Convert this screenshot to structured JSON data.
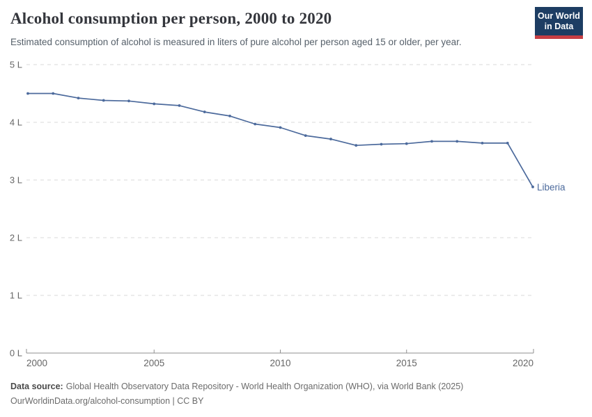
{
  "header": {
    "title": "Alcohol consumption per person, 2000 to 2020",
    "subtitle": "Estimated consumption of alcohol is measured in liters of pure alcohol per person aged 15 or older, per year.",
    "logo": {
      "line1": "Our World",
      "line2": "in Data"
    }
  },
  "chart_data": {
    "type": "line",
    "title": "Alcohol consumption per person, 2000 to 2020",
    "xlabel": "",
    "ylabel": "liters of pure alcohol per person aged 15+",
    "xlim": [
      2000,
      2020
    ],
    "ylim": [
      0,
      5
    ],
    "grid": "horizontal-dashed",
    "legend_position": "end-of-line-label",
    "x": [
      2000,
      2001,
      2002,
      2003,
      2004,
      2005,
      2006,
      2007,
      2008,
      2009,
      2010,
      2011,
      2012,
      2013,
      2014,
      2015,
      2016,
      2017,
      2018,
      2019,
      2020
    ],
    "series": [
      {
        "name": "Liberia",
        "values": [
          4.5,
          4.5,
          4.42,
          4.38,
          4.37,
          4.32,
          4.29,
          4.18,
          4.11,
          3.97,
          3.91,
          3.77,
          3.71,
          3.6,
          3.62,
          3.63,
          3.67,
          3.67,
          3.64,
          3.64,
          2.88
        ]
      }
    ],
    "x_ticks": [
      2000,
      2005,
      2010,
      2015,
      2020
    ],
    "y_ticks": [
      {
        "value": 0,
        "label": "0 L"
      },
      {
        "value": 1,
        "label": "1 L"
      },
      {
        "value": 2,
        "label": "2 L"
      },
      {
        "value": 3,
        "label": "3 L"
      },
      {
        "value": 4,
        "label": "4 L"
      },
      {
        "value": 5,
        "label": "5 L"
      }
    ]
  },
  "footer": {
    "datasource_label": "Data source:",
    "datasource_text": "Global Health Observatory Data Repository - World Health Organization (WHO), via World Bank (2025)",
    "license_line": "OurWorldinData.org/alcohol-consumption | CC BY"
  },
  "colors": {
    "series_line": "#4c6a9c",
    "end_label": "#4c6a9c",
    "gridline": "#d9d9d9",
    "axis": "#8f8f8f",
    "tick_text": "#666666",
    "logo_navy": "#1d3d63",
    "logo_red": "#c73e44",
    "title_text": "#34363c",
    "subtitle_text": "#56606a"
  }
}
